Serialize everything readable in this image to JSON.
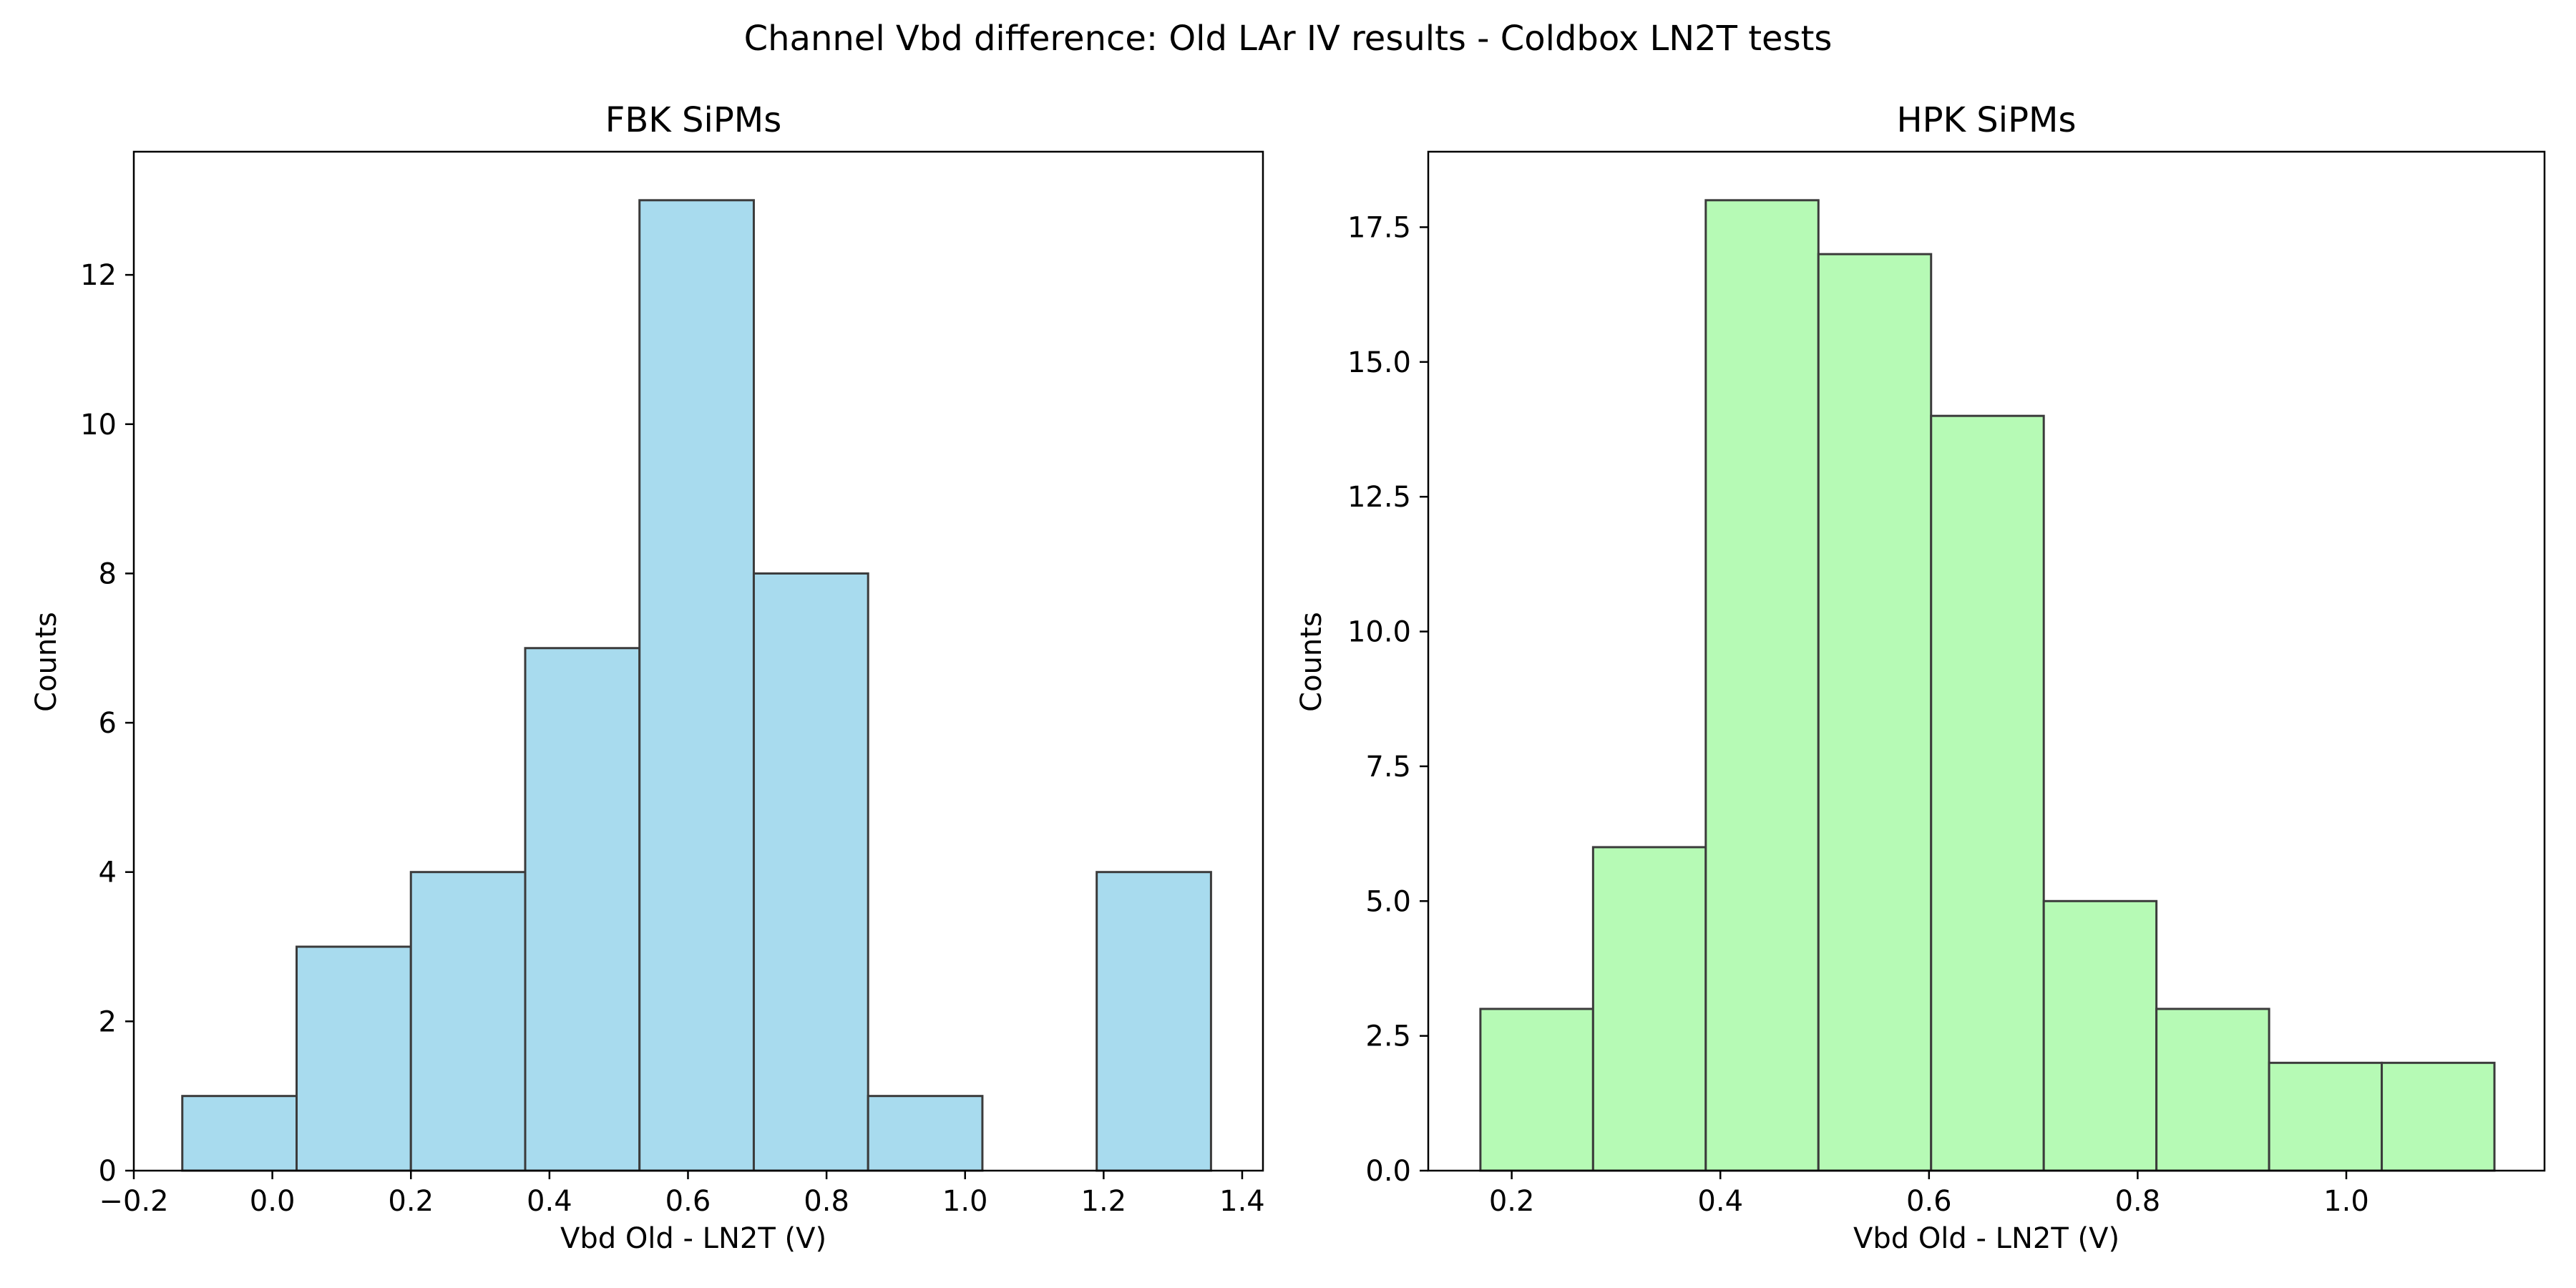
{
  "figure": {
    "suptitle": "Channel Vbd difference: Old LAr IV results - Coldbox LN2T tests"
  },
  "chart_data": [
    {
      "type": "bar",
      "subtype": "histogram",
      "title": "FBK SiPMs",
      "xlabel": "Vbd Old - LN2T (V)",
      "ylabel": "Counts",
      "bin_edges": [
        -0.13,
        0.035,
        0.2,
        0.365,
        0.53,
        0.695,
        0.86,
        1.025,
        1.19,
        1.355
      ],
      "values": [
        1,
        3,
        4,
        7,
        13,
        8,
        1,
        0,
        4
      ],
      "xlim": [
        -0.2,
        1.43
      ],
      "ylim": [
        0,
        13.65
      ],
      "xticks": [
        -0.2,
        0.0,
        0.2,
        0.4,
        0.6,
        0.8,
        1.0,
        1.2,
        1.4
      ],
      "xtick_labels": [
        "−0.2",
        "0.0",
        "0.2",
        "0.4",
        "0.6",
        "0.8",
        "1.0",
        "1.2",
        "1.4"
      ],
      "yticks": [
        0,
        2,
        4,
        6,
        8,
        10,
        12
      ],
      "ytick_labels": [
        "0",
        "2",
        "4",
        "6",
        "8",
        "10",
        "12"
      ],
      "color": "#a8dbee",
      "edge_color": "#3b3b3b",
      "grid": false
    },
    {
      "type": "bar",
      "subtype": "histogram",
      "title": "HPK SiPMs",
      "xlabel": "Vbd Old - LN2T (V)",
      "ylabel": "Counts",
      "bin_edges": [
        0.17,
        0.278,
        0.386,
        0.494,
        0.602,
        0.71,
        0.818,
        0.926,
        1.034,
        1.142
      ],
      "values": [
        3,
        6,
        18,
        17,
        14,
        5,
        3,
        2,
        2
      ],
      "xlim": [
        0.12,
        1.19
      ],
      "ylim": [
        0,
        18.9
      ],
      "xticks": [
        0.2,
        0.4,
        0.6,
        0.8,
        1.0
      ],
      "xtick_labels": [
        "0.2",
        "0.4",
        "0.6",
        "0.8",
        "1.0"
      ],
      "yticks": [
        0,
        2.5,
        5,
        7.5,
        10,
        12.5,
        15,
        17.5
      ],
      "ytick_labels": [
        "0.0",
        "2.5",
        "5.0",
        "7.5",
        "10.0",
        "12.5",
        "15.0",
        "17.5"
      ],
      "color": "#b6fab5",
      "edge_color": "#3b3b3b",
      "grid": false
    }
  ]
}
